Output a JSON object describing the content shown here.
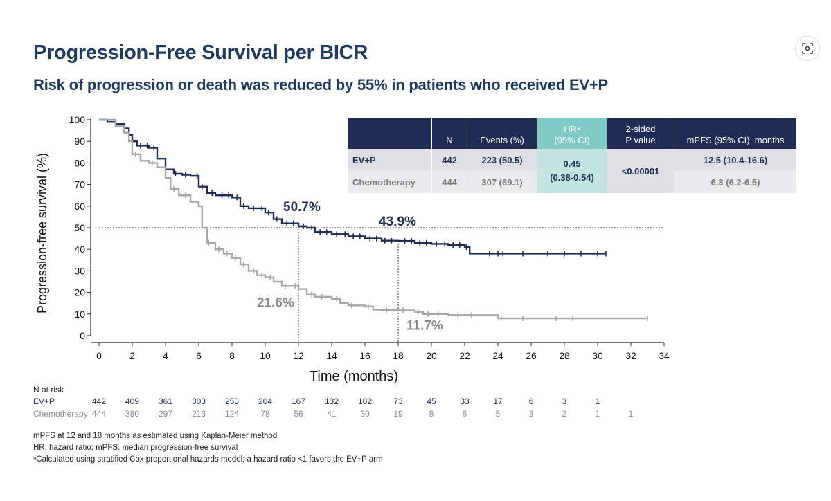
{
  "title": "Progression-Free Survival per BICR",
  "subtitle": "Risk of progression or death was reduced by 55% in patients who received EV+P",
  "colors": {
    "ev": "#1f2d55",
    "chemo": "#a7a7a7",
    "heading": "#1e3a5f",
    "accent": "#7fc9c7"
  },
  "icons": {
    "corner": "image-search-icon"
  },
  "table": {
    "headers": [
      "",
      "N",
      "Events (%)",
      "HRᵃ\n(95% CI)",
      "2-sided\nP value",
      "mPFS (95% CI), months"
    ],
    "rows": [
      {
        "arm": "EV+P",
        "n": "442",
        "events": "223 (50.5)",
        "mpfs": "12.5 (10.4-16.6)"
      },
      {
        "arm": "Chemotherapy",
        "n": "444",
        "events": "307 (69.1)",
        "mpfs": "6.3 (6.2-6.5)"
      }
    ],
    "hr": "0.45",
    "hr_ci": "(0.38-0.54)",
    "p_value": "<0.00001"
  },
  "risk_table": {
    "label": "N at risk",
    "rows": [
      {
        "name": "EV+P",
        "values": [
          "442",
          "409",
          "361",
          "303",
          "253",
          "204",
          "167",
          "132",
          "102",
          "73",
          "45",
          "33",
          "17",
          "6",
          "3",
          "1"
        ]
      },
      {
        "name": "Chemotherapy",
        "values": [
          "444",
          "380",
          "297",
          "213",
          "124",
          "78",
          "56",
          "41",
          "30",
          "19",
          "8",
          "6",
          "5",
          "3",
          "2",
          "1",
          "1"
        ]
      }
    ]
  },
  "footnotes": [
    "mPFS at 12 and 18 months as estimated using Kaplan-Meier method",
    "HR, hazard ratio; mPFS, median progression-free survival",
    "ᵃCalculated using stratified Cox proportional hazards model; a hazard ratio <1 favors the EV+P arm"
  ],
  "chart_data": {
    "type": "line",
    "xlabel": "Time (months)",
    "ylabel": "Progression-free survival (%)",
    "xlim": [
      0,
      34
    ],
    "ylim": [
      0,
      100
    ],
    "x_ticks": [
      "0",
      "2",
      "4",
      "6",
      "8",
      "10",
      "12",
      "14",
      "16",
      "18",
      "20",
      "22",
      "24",
      "26",
      "28",
      "30",
      "32",
      "34"
    ],
    "y_ticks": [
      "0",
      "10",
      "20",
      "30",
      "40",
      "50",
      "60",
      "70",
      "80",
      "90",
      "100"
    ],
    "reference_line_y": 50,
    "series": [
      {
        "name": "EV+P",
        "color": "#1f2d55",
        "points": [
          [
            0,
            100
          ],
          [
            0.5,
            99
          ],
          [
            1,
            98
          ],
          [
            1.5,
            96
          ],
          [
            1.8,
            93
          ],
          [
            2,
            90
          ],
          [
            2.3,
            88
          ],
          [
            3,
            87
          ],
          [
            3.5,
            82
          ],
          [
            4,
            77
          ],
          [
            4.5,
            75
          ],
          [
            5,
            74.5
          ],
          [
            5.5,
            74
          ],
          [
            6,
            69
          ],
          [
            6.5,
            66
          ],
          [
            7,
            65
          ],
          [
            8,
            64
          ],
          [
            8.5,
            60
          ],
          [
            9,
            59
          ],
          [
            10,
            57
          ],
          [
            10.5,
            54
          ],
          [
            11,
            52
          ],
          [
            12,
            50.7
          ],
          [
            12.5,
            50
          ],
          [
            13,
            48
          ],
          [
            14,
            47
          ],
          [
            15,
            46
          ],
          [
            16,
            45
          ],
          [
            17,
            44
          ],
          [
            18,
            43.9
          ],
          [
            19,
            43
          ],
          [
            20,
            42.5
          ],
          [
            21,
            42
          ],
          [
            22,
            41
          ],
          [
            22.3,
            38
          ],
          [
            24,
            38
          ],
          [
            26,
            38
          ],
          [
            28,
            38
          ],
          [
            30.5,
            38
          ]
        ],
        "censor_x": [
          1.8,
          2.5,
          2.9,
          3.3,
          4.6,
          5.2,
          5.9,
          6.2,
          6.8,
          7.4,
          7.8,
          8.3,
          8.7,
          9.3,
          9.8,
          10.2,
          10.7,
          11.3,
          11.7,
          12.3,
          12.8,
          13.3,
          13.7,
          14.3,
          14.8,
          15.3,
          15.7,
          16.3,
          16.7,
          17.2,
          17.6,
          18.4,
          18.8,
          19.3,
          19.7,
          20.3,
          20.8,
          21.3,
          21.7,
          22.1,
          23.5,
          24,
          24.3,
          25.5,
          27,
          28,
          29,
          30,
          30.5
        ],
        "point_label": [
          "50.7%",
          "43.9%"
        ]
      },
      {
        "name": "Chemotherapy",
        "color": "#a7a7a7",
        "points": [
          [
            0,
            100
          ],
          [
            1,
            97
          ],
          [
            1.5,
            94
          ],
          [
            1.8,
            90
          ],
          [
            2,
            84
          ],
          [
            2.5,
            81
          ],
          [
            3,
            80
          ],
          [
            3.5,
            78
          ],
          [
            4,
            73
          ],
          [
            4.3,
            68
          ],
          [
            4.8,
            65
          ],
          [
            5.5,
            62
          ],
          [
            6,
            60
          ],
          [
            6.2,
            50
          ],
          [
            6.5,
            43
          ],
          [
            7,
            40
          ],
          [
            7.5,
            38
          ],
          [
            8,
            36
          ],
          [
            8.5,
            33
          ],
          [
            9,
            30
          ],
          [
            9.5,
            28
          ],
          [
            10,
            27
          ],
          [
            10.5,
            25
          ],
          [
            11,
            23
          ],
          [
            12,
            21.6
          ],
          [
            12.5,
            19
          ],
          [
            13,
            18
          ],
          [
            14,
            17
          ],
          [
            14.5,
            15
          ],
          [
            15,
            14
          ],
          [
            16,
            13.5
          ],
          [
            16.5,
            12
          ],
          [
            17,
            11.8
          ],
          [
            18,
            11.7
          ],
          [
            19,
            11
          ],
          [
            19.5,
            10
          ],
          [
            21,
            9.5
          ],
          [
            24,
            8
          ],
          [
            27,
            8
          ],
          [
            30,
            8
          ],
          [
            33,
            8
          ]
        ],
        "censor_x": [
          2.2,
          3.2,
          4.5,
          5.2,
          6.6,
          7.2,
          7.7,
          8.2,
          8.7,
          9.3,
          9.8,
          10.3,
          11.2,
          11.8,
          12.8,
          13.4,
          14.3,
          15.2,
          16.2,
          17.3,
          18.3,
          19.2,
          19.8,
          20.4,
          21.6,
          22.4,
          24.2,
          25.5,
          27.5,
          28.5,
          33
        ]
      }
    ],
    "annotations": [
      {
        "x": 12,
        "y": 50.7,
        "text": "50.7%"
      },
      {
        "x": 18,
        "y": 43.9,
        "text": "43.9%"
      },
      {
        "x": 12,
        "y": 21.6,
        "text": "21.6%"
      },
      {
        "x": 18,
        "y": 11.7,
        "text": "11.7%"
      }
    ]
  }
}
